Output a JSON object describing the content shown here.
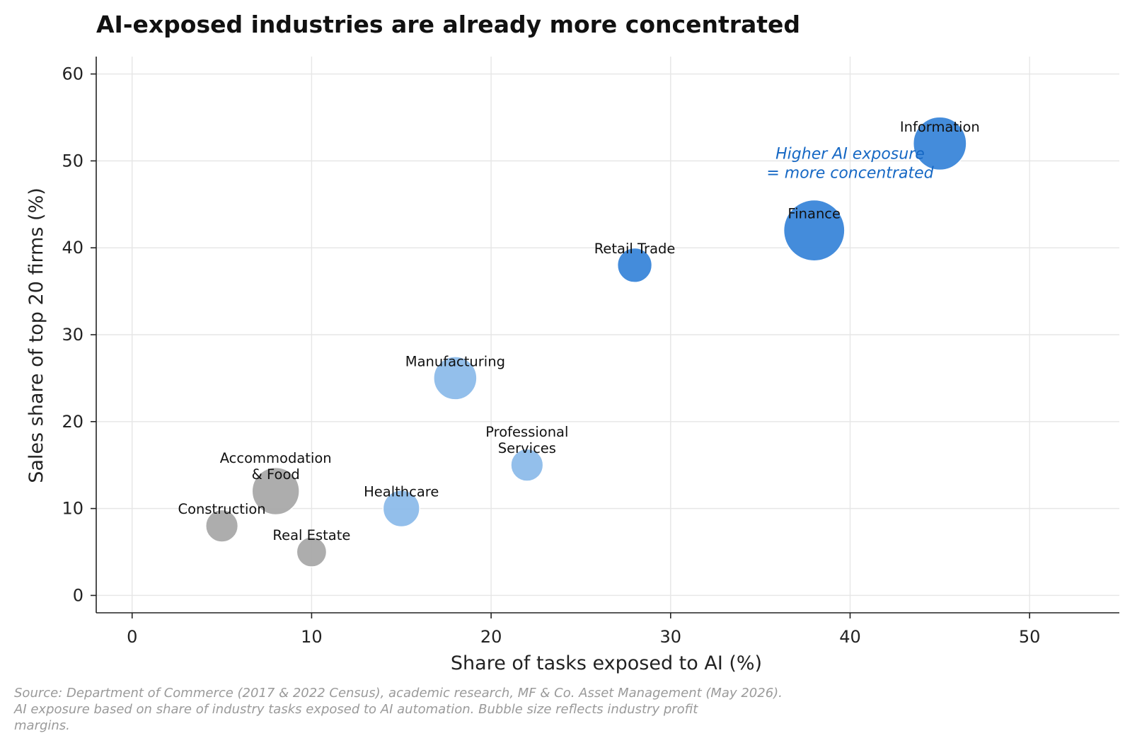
{
  "colors": {
    "high_exposure": "#3a86d9",
    "mid_exposure": "#8dbcea",
    "low_exposure": "#a9a9a9",
    "annotation": "#1668c4"
  },
  "chart_data": {
    "type": "scatter",
    "title": "AI-exposed industries are already more concentrated",
    "xlabel": "Share of tasks exposed to AI (%)",
    "ylabel": "Sales share of top 20 firms (%)",
    "xlim": [
      -2,
      55
    ],
    "ylim": [
      -2,
      62
    ],
    "xticks": [
      0,
      10,
      20,
      30,
      40,
      50
    ],
    "yticks": [
      0,
      10,
      20,
      30,
      40,
      50,
      60
    ],
    "grid": true,
    "points": [
      {
        "label": [
          "Information"
        ],
        "x": 45,
        "y": 52,
        "size": 38,
        "group": "high"
      },
      {
        "label": [
          "Finance"
        ],
        "x": 38,
        "y": 42,
        "size": 50,
        "group": "high"
      },
      {
        "label": [
          "Retail Trade"
        ],
        "x": 28,
        "y": 38,
        "size": 16,
        "group": "high"
      },
      {
        "label": [
          "Manufacturing"
        ],
        "x": 18,
        "y": 25,
        "size": 25,
        "group": "mid"
      },
      {
        "label": [
          "Professional",
          "Services"
        ],
        "x": 22,
        "y": 15,
        "size": 14,
        "group": "mid"
      },
      {
        "label": [
          "Healthcare"
        ],
        "x": 15,
        "y": 10,
        "size": 18,
        "group": "mid"
      },
      {
        "label": [
          "Accommodation",
          "& Food"
        ],
        "x": 8,
        "y": 12,
        "size": 30,
        "group": "low"
      },
      {
        "label": [
          "Construction"
        ],
        "x": 5,
        "y": 8,
        "size": 14,
        "group": "low"
      },
      {
        "label": [
          "Real Estate"
        ],
        "x": 10,
        "y": 5,
        "size": 12,
        "group": "low"
      }
    ],
    "annotation": {
      "lines": [
        "Higher AI exposure",
        "= more concentrated"
      ],
      "x": 40,
      "y": 50
    }
  },
  "source_lines": [
    "Source: Department of Commerce (2017 & 2022 Census), academic research, MF & Co. Asset Management (May 2026).",
    "AI exposure based on share of industry tasks exposed to AI automation. Bubble size reflects industry profit",
    "margins."
  ]
}
